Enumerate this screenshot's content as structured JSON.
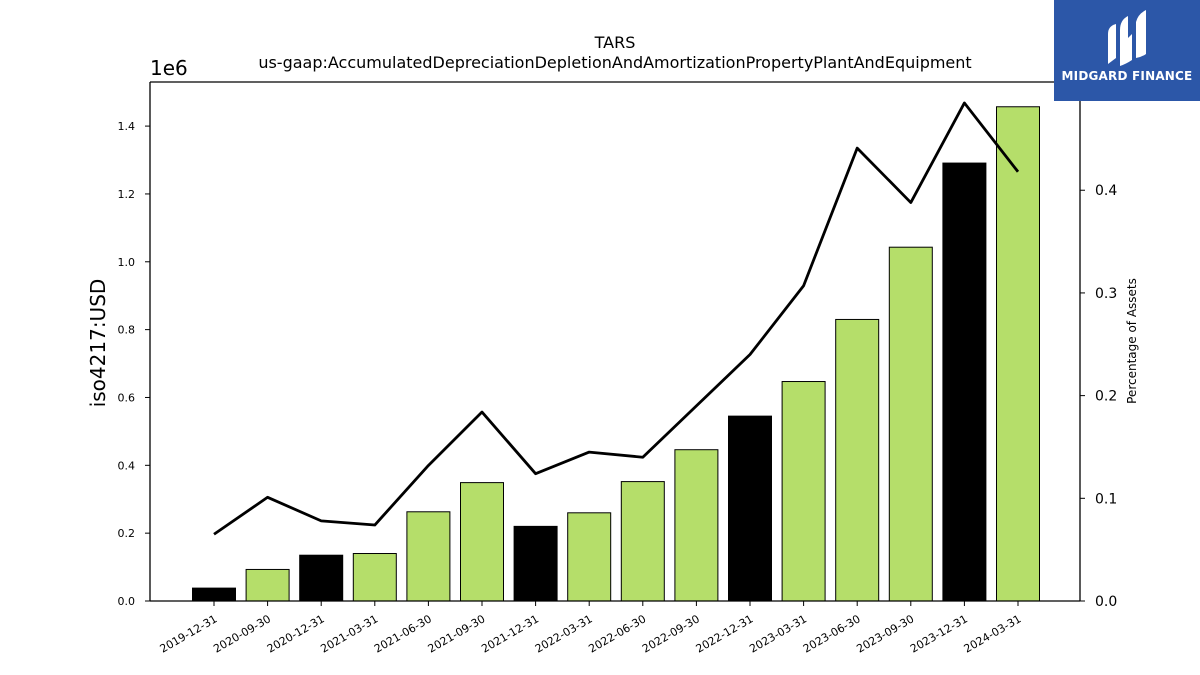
{
  "chart_data": {
    "type": "bar",
    "title": "TARS",
    "subtitle": "us-gaap:AccumulatedDepreciationDepletionAndAmortizationPropertyPlantAndEquipment",
    "ylabel": "iso4217:USD",
    "y_multiplier_label": "1e6",
    "y2label": "Percentage of Assets",
    "ylim": [
      0,
      1.53
    ],
    "y2lim": [
      0,
      0.5054
    ],
    "yticks": [
      "0.0",
      "0.2",
      "0.4",
      "0.6",
      "0.8",
      "1.0",
      "1.2",
      "1.4"
    ],
    "y2ticks": [
      "0.0",
      "0.1",
      "0.2",
      "0.3",
      "0.4"
    ],
    "categories": [
      "2019-12-31",
      "2020-09-30",
      "2020-12-31",
      "2021-03-31",
      "2021-06-30",
      "2021-09-30",
      "2021-12-31",
      "2022-03-31",
      "2022-06-30",
      "2022-09-30",
      "2022-12-31",
      "2023-03-31",
      "2023-06-30",
      "2023-09-30",
      "2023-12-31",
      "2024-03-31"
    ],
    "bar_values": [
      0.038,
      0.093,
      0.135,
      0.14,
      0.263,
      0.349,
      0.22,
      0.26,
      0.352,
      0.446,
      0.545,
      0.647,
      0.83,
      1.043,
      1.291,
      1.457
    ],
    "bar_colors": [
      "#000000",
      "#b5de6a",
      "#000000",
      "#b5de6a",
      "#b5de6a",
      "#b5de6a",
      "#000000",
      "#b5de6a",
      "#b5de6a",
      "#b5de6a",
      "#000000",
      "#b5de6a",
      "#b5de6a",
      "#b5de6a",
      "#000000",
      "#b5de6a"
    ],
    "line_values": [
      0.065,
      0.101,
      0.078,
      0.074,
      0.132,
      0.184,
      0.124,
      0.145,
      0.14,
      0.19,
      0.24,
      0.307,
      0.441,
      0.388,
      0.485,
      0.418
    ],
    "line_color": "#000000",
    "grid": false
  },
  "logo": {
    "text": "MIDGARD FINANCE",
    "bg": "#2c57a8"
  }
}
